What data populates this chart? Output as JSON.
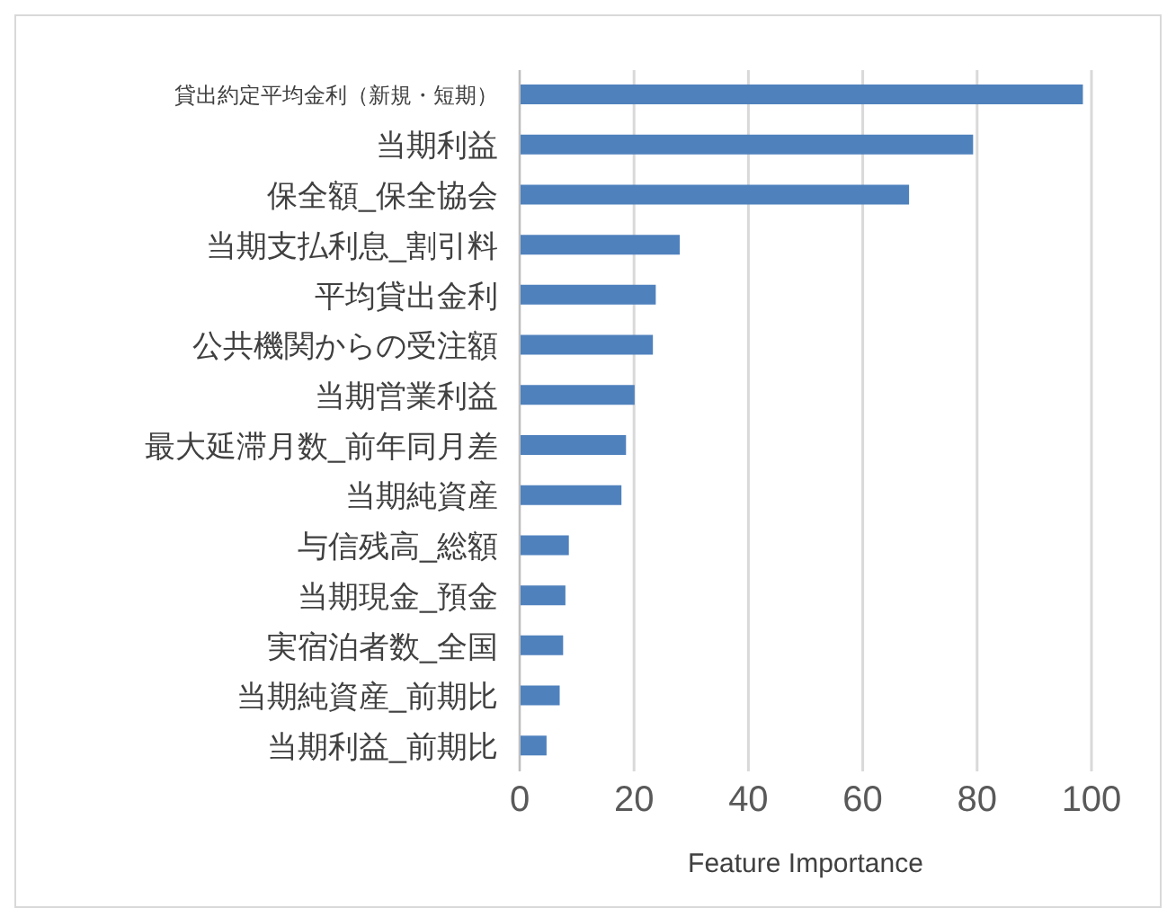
{
  "chart_data": {
    "type": "bar",
    "orientation": "horizontal",
    "categories": [
      "貸出約定平均金利（新規・短期）",
      "当期利益",
      "保全額_保全協会",
      "当期支払利息_割引料",
      "平均貸出金利",
      "公共機関からの受注額",
      "当期営業利益",
      "最大延滞月数_前年同月差",
      "当期純資産",
      "与信残高_総額",
      "当期現金_預金",
      "実宿泊者数_全国",
      "当期純資産_前期比",
      "当期利益_前期比"
    ],
    "values": [
      98.5,
      79.3,
      68.1,
      28.0,
      23.8,
      23.3,
      20.1,
      18.6,
      17.8,
      8.6,
      8.0,
      7.6,
      7.0,
      4.7
    ],
    "color": "#4f81bd",
    "xlabel": "Feature Importance",
    "xlim": [
      0,
      100
    ],
    "xticks": [
      0,
      20,
      40,
      60,
      80,
      100
    ],
    "grid": "x"
  }
}
